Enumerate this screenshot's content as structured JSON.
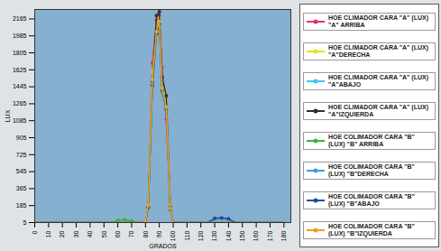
{
  "chart_data": {
    "type": "line",
    "xlabel": "GRADOS",
    "ylabel": "LUX",
    "x": [
      0,
      5,
      10,
      15,
      20,
      25,
      30,
      35,
      40,
      45,
      50,
      55,
      60,
      65,
      70,
      75,
      80,
      82,
      85,
      88,
      90,
      92,
      95,
      98,
      100,
      105,
      110,
      115,
      120,
      125,
      130,
      135,
      140,
      145,
      150,
      155,
      160,
      165,
      170,
      175,
      180
    ],
    "xlim": [
      0,
      185
    ],
    "xticks": [
      0,
      10,
      20,
      30,
      40,
      50,
      60,
      70,
      80,
      90,
      100,
      110,
      120,
      130,
      140,
      150,
      160,
      170,
      180
    ],
    "ylim": [
      5,
      2265
    ],
    "yticks": [
      5,
      185,
      365,
      545,
      725,
      905,
      1085,
      1265,
      1445,
      1625,
      1805,
      1985,
      2165
    ],
    "grid": true,
    "legend": "right",
    "series": [
      {
        "name": "HOE CLIMADOR CARA \"A\" (LUX) \"A\" ARRIBA",
        "color": "#e0307a",
        "marker": "circle",
        "values": [
          5,
          5,
          5,
          5,
          5,
          5,
          5,
          5,
          5,
          5,
          5,
          5,
          5,
          5,
          5,
          5,
          10,
          180,
          1700,
          2150,
          2200,
          1650,
          1100,
          150,
          5,
          5,
          5,
          5,
          5,
          5,
          5,
          5,
          5,
          5,
          5,
          5,
          5,
          5,
          5,
          5,
          5
        ]
      },
      {
        "name": "HOE CLIMADOR CARA \"A\" (LUX) \"A\"DERECHA",
        "color": "#e8e020",
        "marker": "circle",
        "values": [
          5,
          5,
          5,
          5,
          5,
          5,
          5,
          5,
          5,
          5,
          5,
          5,
          5,
          5,
          5,
          5,
          12,
          200,
          1600,
          2100,
          2180,
          1500,
          1300,
          180,
          5,
          5,
          5,
          5,
          5,
          5,
          5,
          5,
          5,
          5,
          5,
          5,
          5,
          5,
          5,
          5,
          5
        ]
      },
      {
        "name": "HOE CLIMADOR CARA \"A\" (LUX) \"A\"ABAJO",
        "color": "#40c8e8",
        "marker": "circle",
        "values": [
          5,
          5,
          5,
          5,
          5,
          5,
          5,
          5,
          5,
          5,
          5,
          5,
          5,
          5,
          5,
          5,
          10,
          190,
          1550,
          2050,
          2150,
          1450,
          1250,
          160,
          5,
          5,
          5,
          5,
          5,
          5,
          5,
          5,
          5,
          5,
          5,
          5,
          5,
          5,
          5,
          5,
          5
        ]
      },
      {
        "name": "HOE CLIMADOR CARA \"A\" (LUX) \"A\"IZQUIERDA",
        "color": "#303030",
        "marker": "circle",
        "values": [
          5,
          5,
          5,
          5,
          5,
          5,
          5,
          5,
          5,
          5,
          5,
          5,
          5,
          5,
          5,
          5,
          8,
          170,
          1500,
          2200,
          2240,
          1550,
          1350,
          170,
          5,
          5,
          5,
          5,
          5,
          5,
          5,
          5,
          5,
          5,
          5,
          5,
          5,
          5,
          5,
          5,
          5
        ]
      },
      {
        "name": "HOE COLIMADOR CARA \"B\" (LUX) \"B\" ARRIBA",
        "color": "#40b040",
        "marker": "circle",
        "values": [
          5,
          5,
          5,
          5,
          5,
          5,
          5,
          5,
          5,
          5,
          5,
          5,
          30,
          35,
          25,
          5,
          8,
          160,
          1450,
          2000,
          2100,
          1400,
          1200,
          140,
          5,
          5,
          5,
          5,
          5,
          5,
          5,
          5,
          5,
          5,
          5,
          5,
          5,
          5,
          5,
          5,
          5
        ]
      },
      {
        "name": "HOE COLIMADOR CARA \"B\" (LUX) \"B\"DERECHA",
        "color": "#3aa0e0",
        "marker": "circle",
        "values": [
          5,
          5,
          5,
          5,
          5,
          5,
          5,
          5,
          5,
          5,
          5,
          5,
          5,
          5,
          5,
          5,
          9,
          175,
          1480,
          2020,
          2120,
          1420,
          1220,
          150,
          5,
          5,
          5,
          5,
          5,
          5,
          40,
          45,
          35,
          5,
          5,
          5,
          5,
          5,
          5,
          5,
          5
        ]
      },
      {
        "name": "HOE COLIMADOR CARA \"B\" (LUX) \"B\"ABAJO",
        "color": "#1f4f9f",
        "marker": "circle",
        "values": [
          5,
          5,
          5,
          5,
          5,
          5,
          5,
          5,
          5,
          5,
          5,
          5,
          5,
          5,
          5,
          5,
          9,
          165,
          1460,
          2010,
          2110,
          1410,
          1210,
          145,
          5,
          5,
          5,
          5,
          5,
          5,
          50,
          55,
          45,
          5,
          5,
          5,
          5,
          5,
          5,
          5,
          5
        ]
      },
      {
        "name": "HOE COLIMADOR CARA \"B\" (LUX) \"B\"IZQUIERDA",
        "color": "#f0a020",
        "marker": "circle",
        "values": [
          5,
          5,
          5,
          5,
          5,
          5,
          5,
          5,
          5,
          5,
          5,
          5,
          5,
          5,
          5,
          5,
          10,
          185,
          1520,
          2030,
          2140,
          1430,
          1230,
          155,
          5,
          5,
          5,
          5,
          5,
          5,
          5,
          5,
          5,
          5,
          5,
          5,
          5,
          5,
          5,
          5,
          5
        ]
      }
    ]
  }
}
